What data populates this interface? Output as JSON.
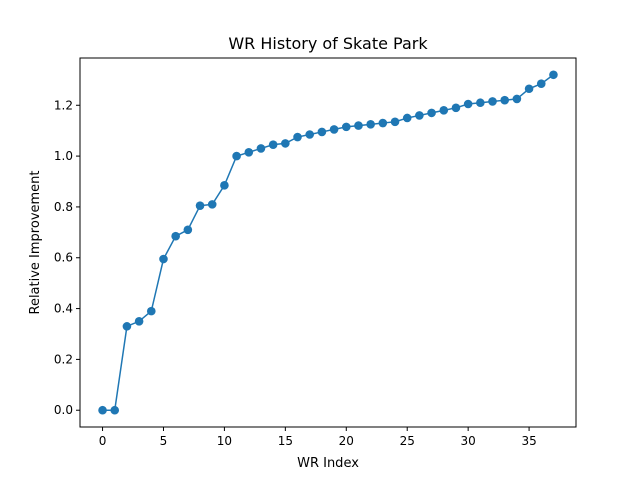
{
  "chart_data": {
    "type": "line",
    "title": "WR History of Skate Park",
    "xlabel": "WR Index",
    "ylabel": "Relative Improvement",
    "xlim": [
      -1.85,
      38.85
    ],
    "ylim": [
      -0.066,
      1.386
    ],
    "xticks": [
      0,
      5,
      10,
      15,
      20,
      25,
      30,
      35
    ],
    "yticks": [
      0.0,
      0.2,
      0.4,
      0.6,
      0.8,
      1.0,
      1.2
    ],
    "ytick_labels": [
      "0.0",
      "0.2",
      "0.4",
      "0.6",
      "0.8",
      "1.0",
      "1.2"
    ],
    "grid": false,
    "marker": "circle",
    "color": "#1f77b4",
    "series": [
      {
        "x": [
          0,
          1,
          2,
          3,
          4,
          5,
          6,
          7,
          8,
          9,
          10,
          11,
          12,
          13,
          14,
          15,
          16,
          17,
          18,
          19,
          20,
          21,
          22,
          23,
          24,
          25,
          26,
          27,
          28,
          29,
          30,
          31,
          32,
          33,
          34,
          35,
          36,
          37
        ],
        "values": [
          0.0,
          0.0,
          0.33,
          0.35,
          0.39,
          0.595,
          0.685,
          0.71,
          0.805,
          0.81,
          0.885,
          1.0,
          1.015,
          1.03,
          1.045,
          1.05,
          1.075,
          1.085,
          1.095,
          1.105,
          1.115,
          1.12,
          1.125,
          1.13,
          1.135,
          1.15,
          1.16,
          1.17,
          1.18,
          1.19,
          1.205,
          1.21,
          1.215,
          1.22,
          1.225,
          1.265,
          1.285,
          1.32
        ]
      }
    ]
  }
}
